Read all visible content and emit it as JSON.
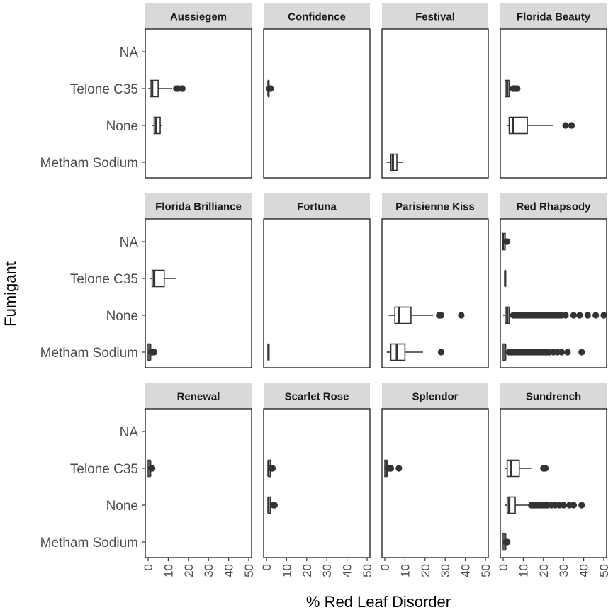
{
  "chart_data": {
    "type": "boxplot",
    "layout": "faceted 3x4 grid, horizontal boxes",
    "xlabel": "% Red Leaf Disorder",
    "ylabel": "Fumigant",
    "xlim": [
      0,
      50
    ],
    "xticks": [
      "0",
      "10",
      "20",
      "30",
      "40",
      "50"
    ],
    "categories": [
      "NA",
      "Telone C35",
      "None",
      "Metham Sodium"
    ],
    "facets": [
      {
        "name": "Aussiegem",
        "boxes": [
          {
            "category": "Telone C35",
            "min": 0,
            "q1": 1,
            "median": 2,
            "q3": 5,
            "max": 12,
            "outliers": [
              14,
              15,
              17
            ]
          },
          {
            "category": "None",
            "min": 2,
            "q1": 3,
            "median": 4,
            "q3": 6,
            "max": 7,
            "outliers": []
          }
        ]
      },
      {
        "name": "Confidence",
        "boxes": [
          {
            "category": "Telone C35",
            "min": 1,
            "q1": 1,
            "median": 1,
            "q3": 1,
            "max": 1,
            "outliers": [
              1.5,
              2
            ]
          }
        ]
      },
      {
        "name": "Festival",
        "boxes": [
          {
            "category": "Metham Sodium",
            "min": 1,
            "q1": 3,
            "median": 4,
            "q3": 6,
            "max": 9,
            "outliers": []
          }
        ]
      },
      {
        "name": "Florida Beauty",
        "boxes": [
          {
            "category": "Telone C35",
            "min": 1,
            "q1": 1,
            "median": 2,
            "q3": 3,
            "max": 4,
            "outliers": [
              5,
              6,
              7
            ]
          },
          {
            "category": "None",
            "min": 2,
            "q1": 3,
            "median": 5,
            "q3": 12,
            "max": 25,
            "outliers": [
              31,
              34
            ]
          }
        ]
      },
      {
        "name": "Florida Brilliance",
        "boxes": [
          {
            "category": "Telone C35",
            "min": 1,
            "q1": 2,
            "median": 3,
            "q3": 8,
            "max": 14,
            "outliers": []
          },
          {
            "category": "Metham Sodium",
            "min": 0,
            "q1": 0,
            "median": 1,
            "q3": 1,
            "max": 1,
            "outliers": [
              1.5,
              2,
              3
            ]
          }
        ]
      },
      {
        "name": "Fortuna",
        "boxes": [
          {
            "category": "Metham Sodium",
            "min": 1,
            "q1": 1,
            "median": 1,
            "q3": 1,
            "max": 1,
            "outliers": []
          }
        ]
      },
      {
        "name": "Parisienne Kiss",
        "boxes": [
          {
            "category": "None",
            "min": 2,
            "q1": 5,
            "median": 7,
            "q3": 13,
            "max": 24,
            "outliers": [
              27,
              28,
              38
            ]
          },
          {
            "category": "Metham Sodium",
            "min": 1,
            "q1": 3,
            "median": 6,
            "q3": 10,
            "max": 19,
            "outliers": [
              28
            ]
          }
        ]
      },
      {
        "name": "Red Rhapsody",
        "boxes": [
          {
            "category": "NA",
            "min": 0,
            "q1": 0,
            "median": 0,
            "q3": 1,
            "max": 1,
            "outliers": [
              1.5,
              2
            ]
          },
          {
            "category": "Telone C35",
            "min": 1,
            "q1": 1,
            "median": 1,
            "q3": 1,
            "max": 1,
            "outliers": []
          },
          {
            "category": "None",
            "min": 0,
            "q1": 1,
            "median": 2,
            "q3": 3,
            "max": 4,
            "outliers": [
              5,
              6,
              7,
              8,
              9,
              10,
              11,
              12,
              13,
              14,
              15,
              16,
              17,
              18,
              19,
              20,
              21,
              22,
              23,
              24,
              25,
              26,
              27,
              28,
              29,
              31,
              35,
              38,
              42,
              46,
              50
            ]
          },
          {
            "category": "Metham Sodium",
            "min": 0,
            "q1": 0,
            "median": 1,
            "q3": 1,
            "max": 2,
            "outliers": [
              3,
              4,
              5,
              6,
              7,
              8,
              9,
              10,
              11,
              12,
              13,
              14,
              15,
              16,
              17,
              18,
              19,
              20,
              21,
              22,
              23,
              25,
              27,
              29,
              32,
              39
            ]
          }
        ]
      },
      {
        "name": "Renewal",
        "boxes": [
          {
            "category": "Telone C35",
            "min": 0,
            "q1": 0,
            "median": 1,
            "q3": 1,
            "max": 1,
            "outliers": [
              1.5,
              2
            ]
          }
        ]
      },
      {
        "name": "Scarlet Rose",
        "boxes": [
          {
            "category": "Telone C35",
            "min": 1,
            "q1": 1,
            "median": 1,
            "q3": 2,
            "max": 2,
            "outliers": [
              2.5,
              3
            ]
          },
          {
            "category": "None",
            "min": 1,
            "q1": 1,
            "median": 1,
            "q3": 2,
            "max": 3,
            "outliers": [
              3.5,
              4
            ]
          }
        ]
      },
      {
        "name": "Splendor",
        "boxes": [
          {
            "category": "Telone C35",
            "min": 0,
            "q1": 0,
            "median": 1,
            "q3": 1,
            "max": 1,
            "outliers": [
              1.5,
              2,
              3,
              7
            ]
          }
        ]
      },
      {
        "name": "Sundrench",
        "boxes": [
          {
            "category": "Telone C35",
            "min": 1,
            "q1": 2,
            "median": 4,
            "q3": 8,
            "max": 14,
            "outliers": [
              20,
              21
            ]
          },
          {
            "category": "None",
            "min": 1,
            "q1": 2,
            "median": 3,
            "q3": 6,
            "max": 13,
            "outliers": [
              14,
              15,
              16,
              17,
              18,
              19,
              20,
              21,
              22,
              24,
              26,
              28,
              30,
              33,
              35,
              39
            ]
          },
          {
            "category": "Metham Sodium",
            "min": 0,
            "q1": 0,
            "median": 1,
            "q3": 1,
            "max": 1,
            "outliers": [
              1.5,
              2
            ]
          }
        ]
      }
    ]
  },
  "colors": {
    "strip_fill": "#d9d9d9",
    "panel_border": "#1a1a1a",
    "box_fill": "#ffffff",
    "mark": "#333333",
    "tick_text": "#4d4d4d"
  }
}
